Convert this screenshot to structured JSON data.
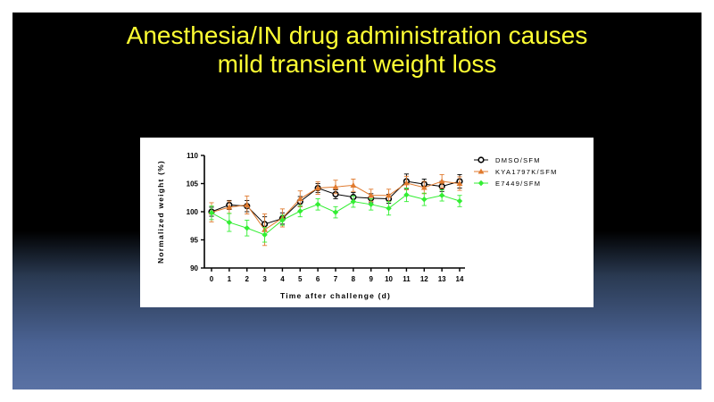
{
  "slide": {
    "title_line1": "Anesthesia/IN drug administration causes",
    "title_line2": "mild transient weight loss"
  },
  "colors": {
    "slide_title": "#ffff33",
    "dmso": "#000000",
    "kya": "#e07a2e",
    "e7449": "#33ee33"
  },
  "chart_data": {
    "type": "line",
    "title": "",
    "xlabel": "Time after challenge (d)",
    "ylabel": "Normalized weight (%)",
    "x": [
      0,
      1,
      2,
      3,
      4,
      5,
      6,
      7,
      8,
      9,
      10,
      11,
      12,
      13,
      14
    ],
    "xticks": [
      "0",
      "1",
      "2",
      "3",
      "4",
      "5",
      "6",
      "7",
      "8",
      "9",
      "10",
      "11",
      "12",
      "13",
      "14"
    ],
    "ylim": [
      90,
      110
    ],
    "yticks": [
      "90",
      "95",
      "100",
      "105",
      "110"
    ],
    "ytick_values": [
      90,
      95,
      100,
      105,
      110
    ],
    "grid": false,
    "legend_position": "right",
    "series": [
      {
        "name": "DMSO/SFM",
        "color": "#000000",
        "marker": "open-circle",
        "values": [
          100,
          101.2,
          101,
          97.8,
          98.8,
          101.8,
          104.2,
          103.1,
          102.6,
          102.4,
          102.3,
          105.4,
          104.9,
          104.5,
          105.4
        ],
        "errors": [
          0.8,
          0.8,
          1.0,
          1.3,
          1.0,
          0.9,
          0.8,
          0.8,
          0.8,
          0.8,
          0.8,
          1.3,
          0.9,
          0.9,
          1.2
        ]
      },
      {
        "name": "KYA1797K/SFM",
        "color": "#e07a2e",
        "marker": "triangle",
        "values": [
          99.9,
          100.8,
          101.2,
          96.8,
          98.9,
          102.3,
          104.2,
          104.4,
          104.7,
          102.9,
          102.9,
          105.1,
          104.3,
          105.4,
          105
        ],
        "errors": [
          1.7,
          1.1,
          1.6,
          2.8,
          1.6,
          1.4,
          1.1,
          1.2,
          1.1,
          1.1,
          1.1,
          1.2,
          1.1,
          1.2,
          1.2
        ]
      },
      {
        "name": "E7449/SFM",
        "color": "#33ee33",
        "marker": "diamond",
        "values": [
          99.8,
          98.1,
          97.1,
          95.9,
          98.5,
          100.1,
          101.3,
          99.9,
          101.8,
          101.3,
          100.6,
          103,
          102.2,
          102.9,
          101.9
        ],
        "errors": [
          1.2,
          1.6,
          1.4,
          1.3,
          0.9,
          1.0,
          1.0,
          1.0,
          1.0,
          1.0,
          1.2,
          1.2,
          1.1,
          1.0,
          1.0
        ]
      }
    ]
  }
}
